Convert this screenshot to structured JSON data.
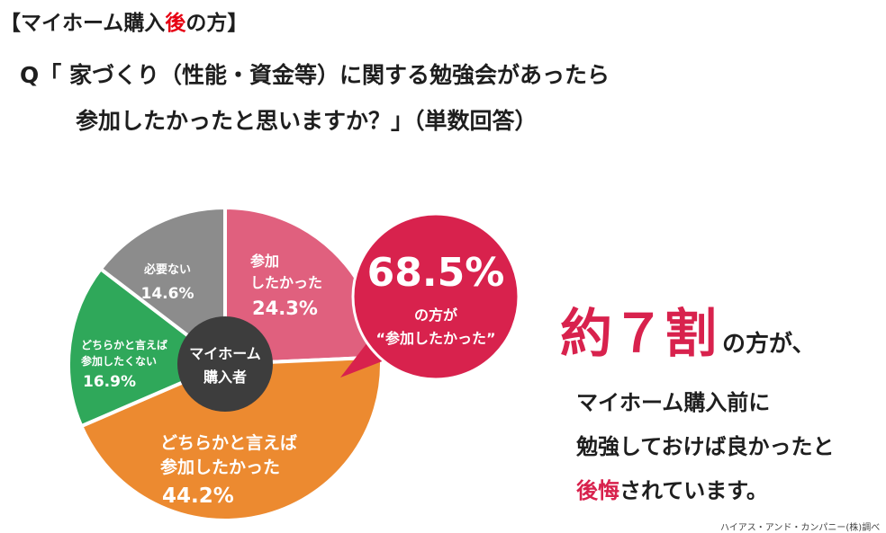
{
  "header": {
    "prefix": "【マイホーム購入",
    "highlight": "後",
    "suffix": "の方】"
  },
  "question": {
    "line1": "Q「 家づくり（性能・資金等）に関する勉強会があったら",
    "line2": "参加したかったと思いますか？」（単数回答）"
  },
  "chart_data": {
    "type": "pie",
    "center_label": [
      "マイホーム",
      "購入者"
    ],
    "slices": [
      {
        "label_lines": [
          "参加",
          "したかった"
        ],
        "value": 24.3,
        "value_text": "24.3%",
        "color": "#e0607e"
      },
      {
        "label_lines": [
          "どちらかと言えば",
          "参加したかった"
        ],
        "value": 44.2,
        "value_text": "44.2%",
        "color": "#ec8a30"
      },
      {
        "label_lines": [
          "どちらかと言えば",
          "参加したくない"
        ],
        "value": 16.9,
        "value_text": "16.9%",
        "color": "#2fa85a"
      },
      {
        "label_lines": [
          "必要ない"
        ],
        "value": 14.6,
        "value_text": "14.6%",
        "color": "#8c8c8c"
      }
    ],
    "callout": {
      "value": "68.5%",
      "line1": "の方が",
      "line2": "“参加したかった”",
      "color": "#d8224d"
    }
  },
  "summary": {
    "big": "約７割",
    "big_suffix": "の方が、",
    "line1": "マイホーム購入前に",
    "line2": "勉強しておけば良かったと",
    "line3_red": "後悔",
    "line3_rest": "されています。"
  },
  "source": "ハイアス・アンド・カンパニー(株)調べ"
}
